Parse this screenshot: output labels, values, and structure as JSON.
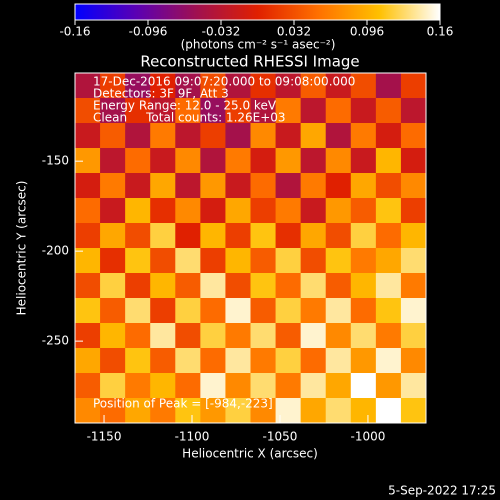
{
  "chart_data": {
    "type": "image",
    "title": "Reconstructed RHESSI Image",
    "colorbar_label": "(photons cm⁻² s⁻¹ asec⁻²)",
    "clim": [
      -0.16,
      0.16
    ],
    "colorbar_ticks": [
      -0.16,
      -0.096,
      -0.032,
      0.032,
      0.096,
      0.16
    ],
    "colormap": [
      "#0000ff",
      "#5a00b4",
      "#a01050",
      "#e02000",
      "#ff7000",
      "#ffc000",
      "#ffffff"
    ],
    "x_label": "Heliocentric X (arcsec)",
    "y_label": "Heliocentric Y (arcsec)",
    "xlim": [
      -1166.5,
      -967
    ],
    "ylim": [
      -295.5,
      -101
    ],
    "xticks": [
      -1150,
      -1100,
      -1050,
      -1000
    ],
    "yticks": [
      -250,
      -200,
      -150
    ],
    "annotations": [
      "17-Dec-2016 09:07:20.000 to 09:08:00.000",
      "Detectors: 3F 9F, Att 3",
      "Energy Range: 12.0 - 25.0 keV",
      "Clean     Total counts: 1.26E+03"
    ],
    "peak_label": "Position of Peak = [-984,-223]",
    "footer": "5-Sep-2022 17:25",
    "z": [
      [
        -0.04,
        0.02,
        -0.06,
        0.0,
        -0.05,
        0.03,
        -0.04,
        0.01,
        -0.03,
        0.04,
        -0.02,
        0.03,
        -0.05,
        0.02
      ],
      [
        0.03,
        -0.05,
        0.01,
        -0.03,
        0.05,
        -0.06,
        0.02,
        -0.04,
        0.06,
        -0.03,
        0.05,
        -0.02,
        0.04,
        -0.03
      ],
      [
        -0.02,
        0.04,
        -0.04,
        0.06,
        -0.03,
        0.02,
        -0.05,
        0.07,
        -0.02,
        0.09,
        -0.04,
        0.06,
        -0.01,
        0.05
      ],
      [
        0.08,
        -0.03,
        0.05,
        -0.02,
        0.07,
        -0.04,
        0.06,
        -0.01,
        0.08,
        -0.03,
        0.07,
        -0.02,
        0.1,
        -0.01
      ],
      [
        -0.01,
        0.06,
        -0.02,
        0.09,
        -0.03,
        0.08,
        -0.02,
        0.05,
        -0.04,
        0.06,
        0.0,
        0.09,
        0.03,
        0.07
      ],
      [
        0.05,
        -0.02,
        0.1,
        0.01,
        0.07,
        -0.01,
        0.09,
        0.02,
        0.06,
        -0.02,
        0.08,
        0.04,
        0.11,
        0.02
      ],
      [
        0.02,
        0.09,
        0.03,
        0.12,
        0.0,
        0.1,
        0.02,
        0.11,
        0.01,
        0.09,
        0.03,
        0.12,
        0.05,
        0.1
      ],
      [
        0.1,
        0.01,
        0.11,
        0.03,
        0.13,
        0.02,
        0.1,
        0.04,
        0.12,
        0.03,
        0.11,
        0.06,
        0.09,
        0.13
      ],
      [
        0.03,
        0.12,
        0.02,
        0.1,
        0.04,
        0.14,
        0.03,
        0.11,
        0.05,
        0.13,
        0.04,
        0.1,
        0.14,
        0.06
      ],
      [
        0.11,
        0.04,
        0.13,
        0.02,
        0.12,
        0.05,
        0.15,
        0.04,
        0.12,
        0.06,
        0.14,
        0.05,
        0.11,
        0.15
      ],
      [
        0.02,
        0.1,
        0.05,
        0.14,
        0.03,
        0.12,
        0.06,
        0.13,
        0.04,
        0.15,
        0.07,
        0.13,
        0.06,
        0.12
      ],
      [
        0.09,
        0.03,
        0.11,
        0.04,
        0.13,
        0.05,
        0.14,
        0.06,
        0.12,
        0.05,
        0.14,
        0.08,
        0.15,
        0.07
      ],
      [
        0.04,
        0.12,
        0.06,
        0.1,
        0.05,
        0.15,
        0.07,
        0.13,
        0.06,
        0.14,
        0.09,
        0.16,
        0.08,
        0.14
      ],
      [
        0.07,
        0.05,
        0.09,
        0.06,
        0.11,
        0.08,
        0.12,
        0.07,
        0.15,
        0.09,
        0.13,
        0.1,
        0.16,
        0.11
      ]
    ]
  }
}
